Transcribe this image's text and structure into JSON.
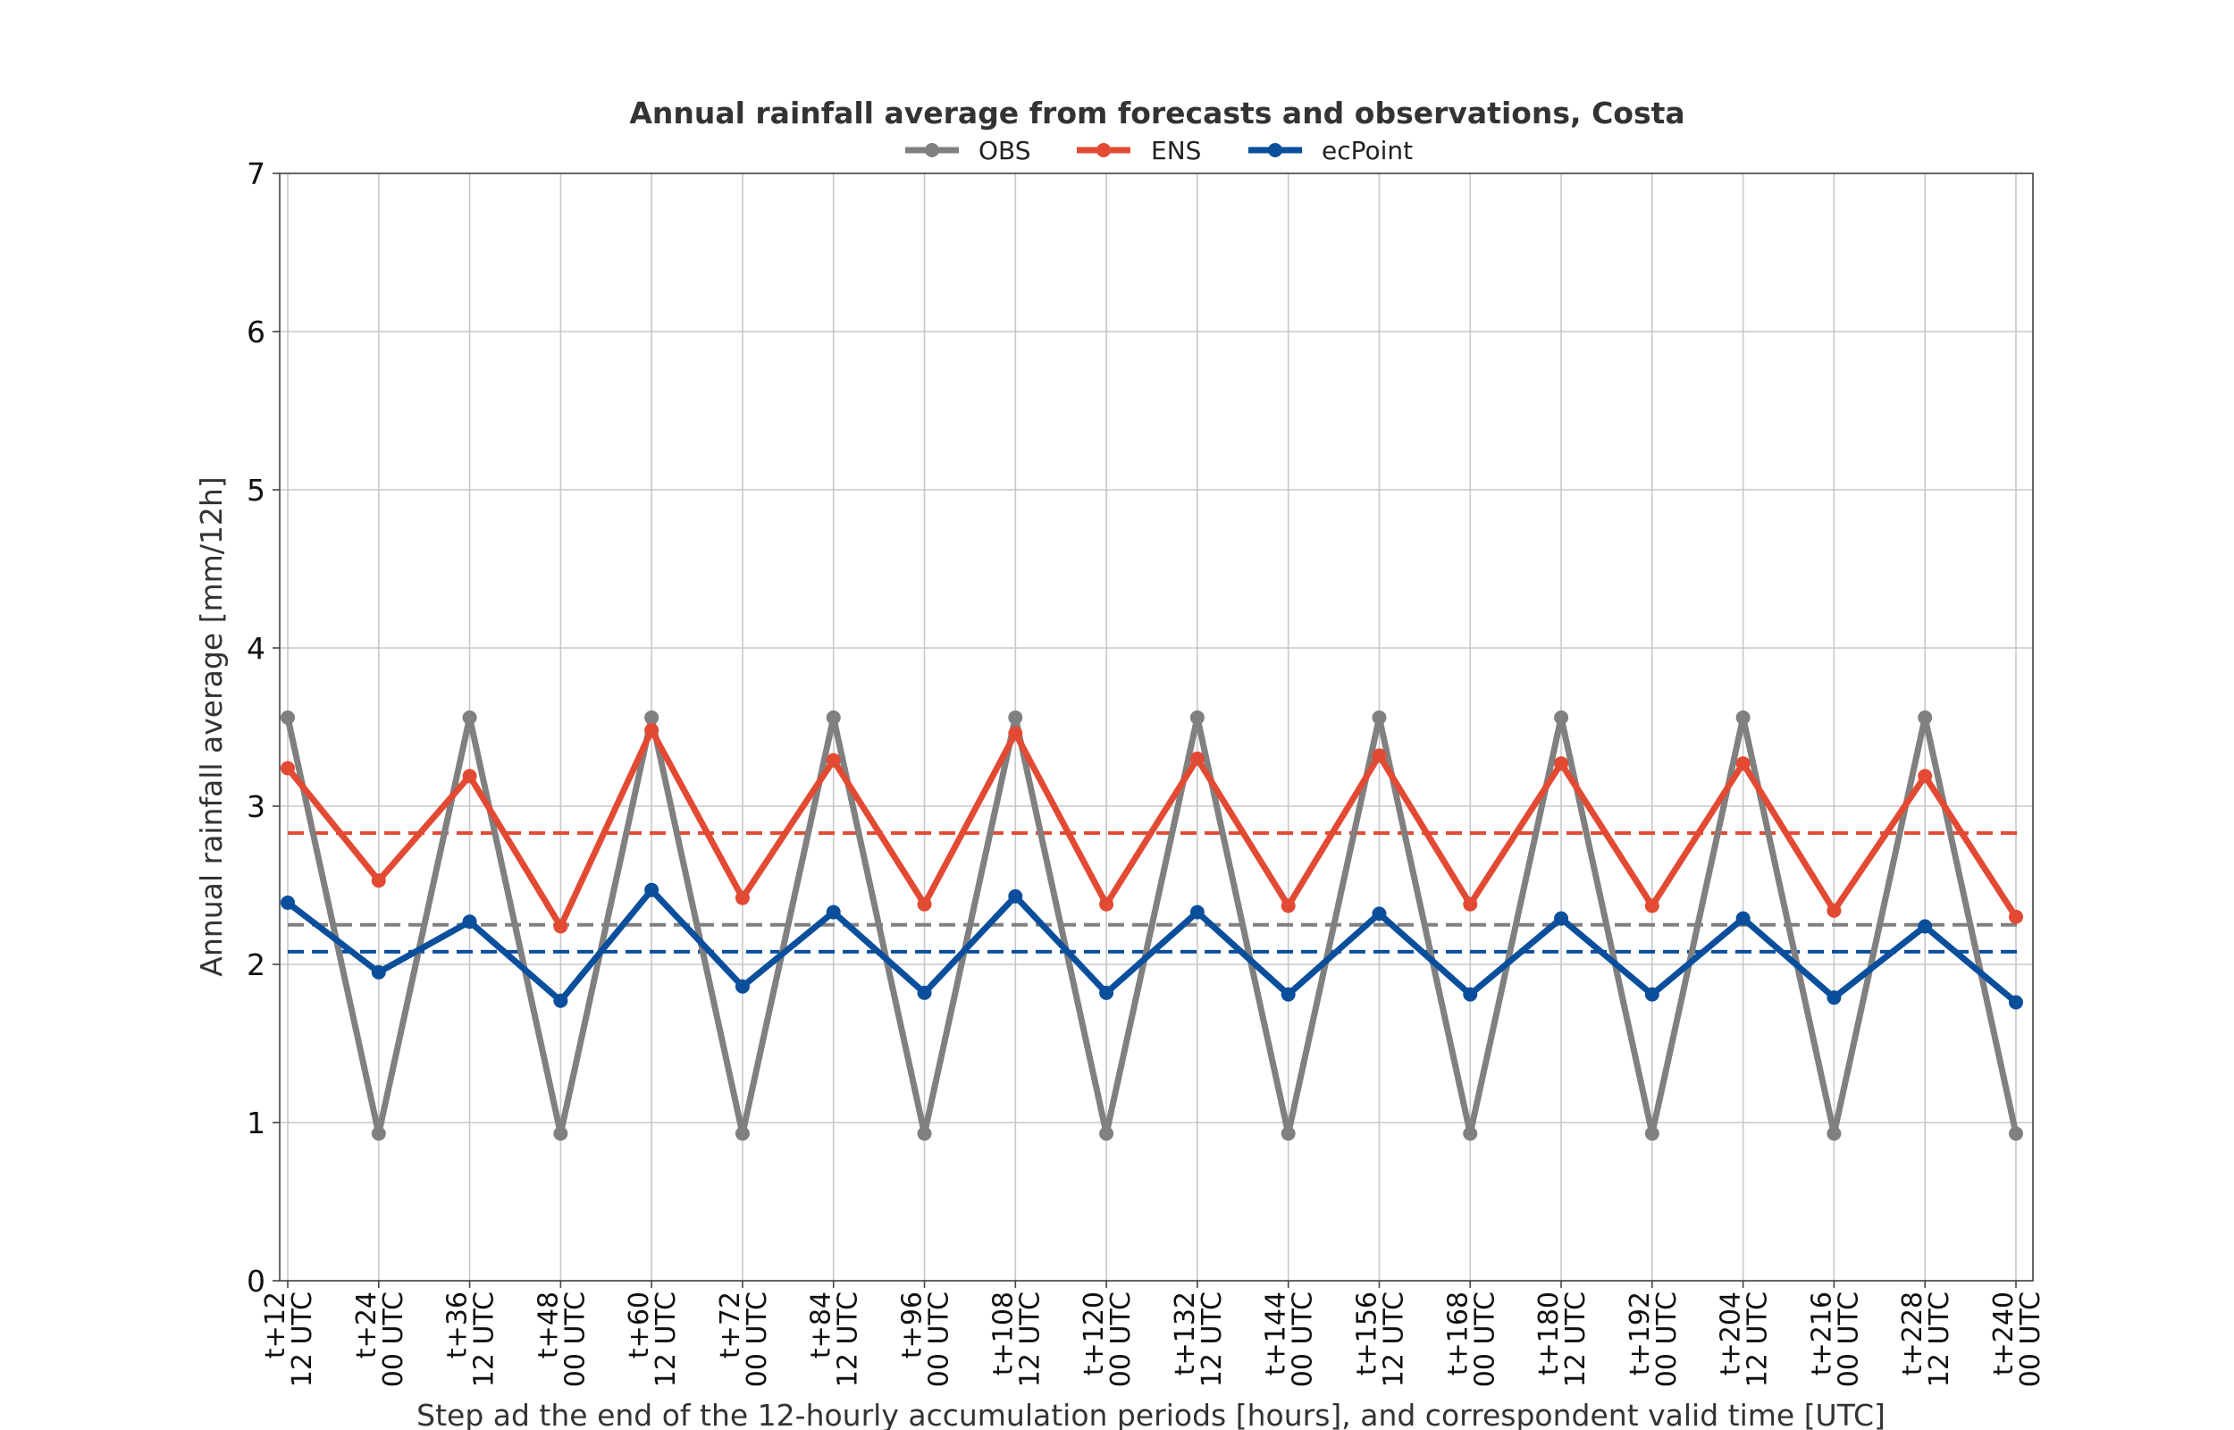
{
  "chart_data": {
    "type": "line",
    "title": "Annual rainfall average from forecasts and observations, Costa",
    "xlabel": "Step ad the end of the 12-hourly accumulation periods [hours], and correspondent valid time [UTC]",
    "ylabel": "Annual rainfall average [mm/12h]",
    "ylim": [
      0,
      7
    ],
    "yticks": [
      "0",
      "1",
      "2",
      "3",
      "4",
      "5",
      "6",
      "7"
    ],
    "grid": true,
    "legend_position": "top-center",
    "categories": [
      [
        "t+12",
        "12 UTC"
      ],
      [
        "t+24",
        "00 UTC"
      ],
      [
        "t+36",
        "12 UTC"
      ],
      [
        "t+48",
        "00 UTC"
      ],
      [
        "t+60",
        "12 UTC"
      ],
      [
        "t+72",
        "00 UTC"
      ],
      [
        "t+84",
        "12 UTC"
      ],
      [
        "t+96",
        "00 UTC"
      ],
      [
        "t+108",
        "12 UTC"
      ],
      [
        "t+120",
        "00 UTC"
      ],
      [
        "t+132",
        "12 UTC"
      ],
      [
        "t+144",
        "00 UTC"
      ],
      [
        "t+156",
        "12 UTC"
      ],
      [
        "t+168",
        "00 UTC"
      ],
      [
        "t+180",
        "12 UTC"
      ],
      [
        "t+192",
        "00 UTC"
      ],
      [
        "t+204",
        "12 UTC"
      ],
      [
        "t+216",
        "00 UTC"
      ],
      [
        "t+228",
        "12 UTC"
      ],
      [
        "t+240",
        "00 UTC"
      ]
    ],
    "series": [
      {
        "name": "OBS",
        "color": "#808080",
        "values": [
          3.56,
          0.93,
          3.56,
          0.93,
          3.56,
          0.93,
          3.56,
          0.93,
          3.56,
          0.93,
          3.56,
          0.93,
          3.56,
          0.93,
          3.56,
          0.93,
          3.56,
          0.93,
          3.56,
          0.93
        ],
        "mean": 2.25
      },
      {
        "name": "ENS",
        "color": "#e24a33",
        "values": [
          3.24,
          2.53,
          3.19,
          2.24,
          3.48,
          2.42,
          3.29,
          2.38,
          3.46,
          2.38,
          3.3,
          2.37,
          3.32,
          2.38,
          3.27,
          2.37,
          3.27,
          2.34,
          3.19,
          2.3
        ],
        "mean": 2.83
      },
      {
        "name": "ecPoint",
        "color": "#0b4f9c",
        "values": [
          2.39,
          1.95,
          2.27,
          1.77,
          2.47,
          1.86,
          2.33,
          1.82,
          2.43,
          1.82,
          2.33,
          1.81,
          2.32,
          1.81,
          2.29,
          1.81,
          2.29,
          1.79,
          2.24,
          1.76
        ],
        "mean": 2.08
      }
    ]
  }
}
